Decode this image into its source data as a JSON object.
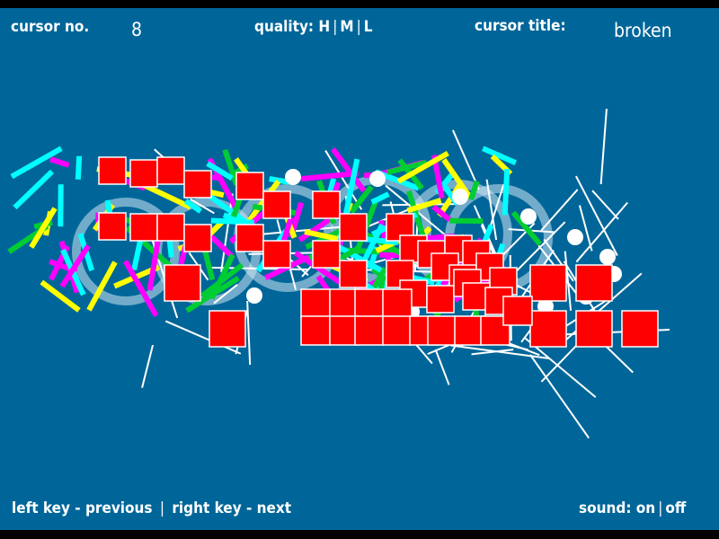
{
  "header": {
    "cursor_no_label": "cursor no.",
    "cursor_no_value": "8",
    "quality_label": "quality:",
    "quality_options": [
      "H",
      "M",
      "L"
    ],
    "cursor_title_label": "cursor title:",
    "cursor_title_value": "broken"
  },
  "footer": {
    "prev_hint": "left key - previous",
    "separator": "|",
    "next_hint": "right key - next",
    "sound_label": "sound:",
    "sound_options": [
      "on",
      "off"
    ]
  },
  "colors": {
    "background": "#006699",
    "frame": "#000000",
    "squares": "#ff0000",
    "streaks": [
      "#00ffff",
      "#ffff00",
      "#ff00ff",
      "#00cc33",
      "#ffffff"
    ]
  }
}
